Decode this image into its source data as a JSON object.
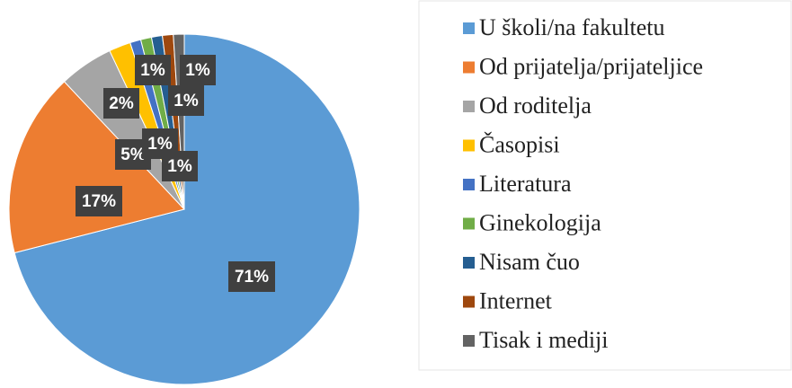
{
  "chart_data": {
    "type": "pie",
    "categories": [
      "U školi/na fakultetu",
      "Od prijatelja/prijateljice",
      "Od roditelja",
      "Časopisi",
      "Literatura",
      "Ginekologija",
      "Nisam čuo",
      "Internet",
      "Tisak i mediji"
    ],
    "values": [
      71,
      17,
      5,
      2,
      1,
      1,
      1,
      1,
      1
    ],
    "value_labels": [
      "71%",
      "17%",
      "5%",
      "2%",
      "1%",
      "1%",
      "1%",
      "1%",
      "1%"
    ],
    "colors": [
      "#5b9bd5",
      "#ed7d31",
      "#a5a5a5",
      "#ffc000",
      "#4472c4",
      "#70ad47",
      "#255e91",
      "#9e480e",
      "#636363"
    ],
    "legend": "right"
  }
}
